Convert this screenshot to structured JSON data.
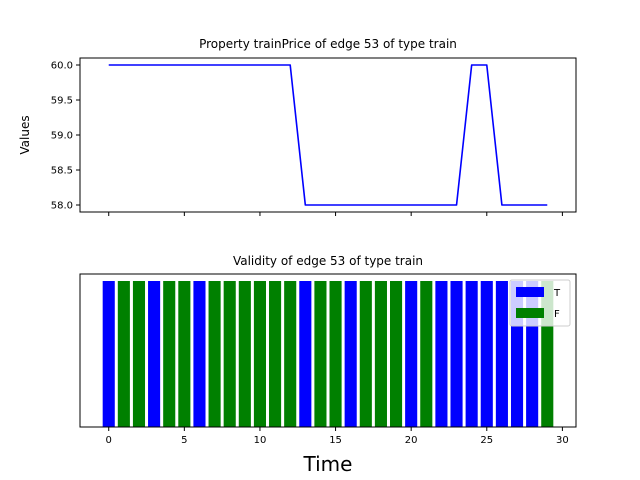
{
  "chart_data": [
    {
      "type": "line",
      "title": "Property trainPrice of edge 53 of type train",
      "xlabel": "",
      "ylabel": "Values",
      "x": [
        0,
        1,
        2,
        3,
        4,
        5,
        6,
        7,
        8,
        9,
        10,
        11,
        12,
        13,
        14,
        15,
        16,
        17,
        18,
        19,
        20,
        21,
        22,
        23,
        24,
        25,
        26,
        27,
        28,
        29
      ],
      "series": [
        {
          "color": "#0000ff",
          "values": [
            60,
            60,
            60,
            60,
            60,
            60,
            60,
            60,
            60,
            60,
            60,
            60,
            60,
            58,
            58,
            58,
            58,
            58,
            58,
            58,
            58,
            58,
            58,
            58,
            60,
            60,
            58,
            58,
            58,
            58
          ]
        }
      ],
      "xlim": [
        -1.9,
        30.9
      ],
      "ylim": [
        57.9,
        60.1
      ],
      "yticks": [
        "58.0",
        "58.5",
        "59.0",
        "59.5",
        "60.0"
      ],
      "xticks_visible": false,
      "grid": false
    },
    {
      "type": "bar",
      "title": "Validity of edge 53 of type train",
      "xlabel": "Time",
      "ylabel": "",
      "x": [
        0,
        1,
        2,
        3,
        4,
        5,
        6,
        7,
        8,
        9,
        10,
        11,
        12,
        13,
        14,
        15,
        16,
        17,
        18,
        19,
        20,
        21,
        22,
        23,
        24,
        25,
        26,
        27,
        28,
        29
      ],
      "validity": [
        "T",
        "F",
        "F",
        "T",
        "F",
        "F",
        "T",
        "F",
        "F",
        "F",
        "F",
        "F",
        "F",
        "T",
        "F",
        "F",
        "T",
        "F",
        "F",
        "F",
        "T",
        "F",
        "T",
        "T",
        "T",
        "T",
        "T",
        "T",
        "T",
        "F"
      ],
      "xticks": [
        "0",
        "5",
        "10",
        "15",
        "20",
        "25",
        "30"
      ],
      "xlim": [
        -1.9,
        30.9
      ],
      "legend": {
        "position": "top-right",
        "entries": [
          {
            "label": "T",
            "color": "#0000ff"
          },
          {
            "label": "F",
            "color": "#008000"
          }
        ]
      },
      "grid": false
    }
  ]
}
